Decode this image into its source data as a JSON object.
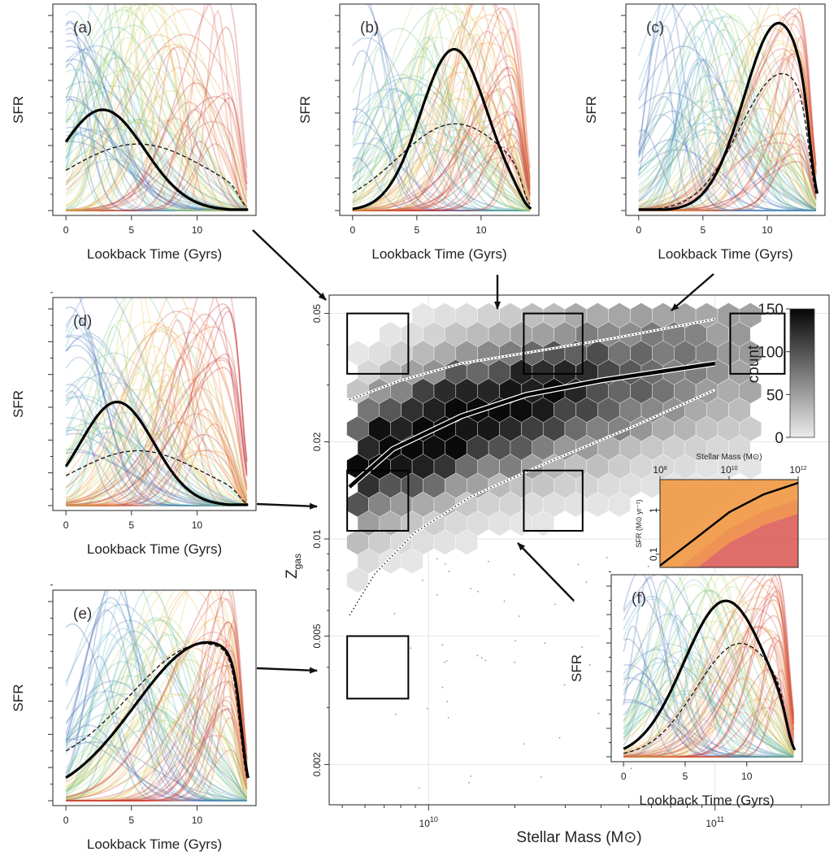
{
  "figure": {
    "width": 1031,
    "height": 1053
  },
  "chart_data": [
    {
      "id": "a",
      "type": "line",
      "label": "(a)",
      "xlabel": "Lookback Time (Gyrs)",
      "ylabel": "SFR",
      "xticks": [
        0,
        5,
        10
      ],
      "xlim": [
        -1,
        14.5
      ],
      "mean_curve": {
        "peak": 2.8,
        "width": 3.2,
        "amp": 0.5,
        "start": 0.3
      },
      "median_curve": {
        "peak": 5.5,
        "width": 5.5,
        "amp": 0.33
      },
      "bundle_seed": 11
    },
    {
      "id": "b",
      "type": "line",
      "label": "(b)",
      "xlabel": "Lookback Time (Gyrs)",
      "ylabel": "SFR",
      "xticks": [
        0,
        5,
        10
      ],
      "xlim": [
        -1,
        14.5
      ],
      "mean_curve": {
        "peak": 7.9,
        "width": 2.6,
        "amp": 0.8,
        "start": 0.02
      },
      "median_curve": {
        "peak": 8.0,
        "width": 4.5,
        "amp": 0.43
      },
      "bundle_seed": 23
    },
    {
      "id": "c",
      "type": "line",
      "label": "(c)",
      "xlabel": "Lookback Time (Gyrs)",
      "ylabel": "SFR",
      "xticks": [
        0,
        5,
        10
      ],
      "xlim": [
        -1,
        14.5
      ],
      "mean_curve": {
        "peak": 10.9,
        "width": 2.7,
        "amp": 0.93,
        "start": 0.0
      },
      "median_curve": {
        "peak": 11.2,
        "width": 3.3,
        "amp": 0.68
      },
      "bundle_seed": 37
    },
    {
      "id": "d",
      "type": "line",
      "label": "(d)",
      "xlabel": "Lookback Time (Gyrs)",
      "ylabel": "SFR",
      "xticks": [
        0,
        5,
        10
      ],
      "xlim": [
        -1,
        14.5
      ],
      "mean_curve": {
        "peak": 3.9,
        "width": 2.8,
        "amp": 0.51,
        "start": 0.39
      },
      "median_curve": {
        "peak": 5.5,
        "width": 5.0,
        "amp": 0.27
      },
      "bundle_seed": 41
    },
    {
      "id": "e",
      "type": "line",
      "label": "(e)",
      "xlabel": "Lookback Time (Gyrs)",
      "ylabel": "SFR",
      "xticks": [
        0,
        5,
        10
      ],
      "xlim": [
        -1,
        14.5
      ],
      "mean_curve": {
        "peak": 10.8,
        "width": 5.5,
        "amp": 0.77,
        "start": 0.33
      },
      "median_curve": {
        "peak": 10.9,
        "width": 6.0,
        "amp": 0.74
      },
      "bundle_seed": 53
    },
    {
      "id": "f",
      "type": "line",
      "label": "(f)",
      "xlabel": "Lookback Time (Gyrs)",
      "ylabel": "SFR",
      "xticks": [
        0,
        5,
        10
      ],
      "xlim": [
        -1,
        14.5
      ],
      "mean_curve": {
        "peak": 8.3,
        "width": 3.4,
        "amp": 0.88,
        "start": 0.33
      },
      "median_curve": {
        "peak": 9.5,
        "width": 3.6,
        "amp": 0.64
      },
      "bundle_seed": 67
    },
    {
      "id": "main",
      "type": "heatmap",
      "xlabel": "Stellar Mass (M⊙)",
      "ylabel": "Z",
      "ylabel_sub": "gas",
      "xscale": "log",
      "yscale": "log",
      "xlim": [
        4500000000.0,
        250000000000.0
      ],
      "ylim": [
        0.0015,
        0.057
      ],
      "xticks": [
        {
          "value": 10000000000.0,
          "base": "10",
          "exp": "10"
        },
        {
          "value": 100000000000.0,
          "base": "10",
          "exp": "11"
        }
      ],
      "yticks": [
        {
          "value": 0.002,
          "label": "0.002"
        },
        {
          "value": 0.005,
          "label": "0.005"
        },
        {
          "value": 0.01,
          "label": "0.01"
        },
        {
          "value": 0.02,
          "label": "0.02"
        },
        {
          "value": 0.05,
          "label": "0.05"
        }
      ],
      "colorbar": {
        "title": "count",
        "min": 0,
        "max": 150,
        "ticks": [
          0,
          50,
          100,
          150
        ]
      },
      "median_track": {
        "x": [
          5300000000.0,
          7500000000.0,
          13000000000.0,
          22000000000.0,
          40000000000.0,
          100000000000.0
        ],
        "y": [
          0.0145,
          0.019,
          0.024,
          0.028,
          0.031,
          0.035
        ]
      },
      "upper_track": {
        "x": [
          5300000000.0,
          8000000000.0,
          13000000000.0,
          23000000000.0,
          45000000000.0,
          100000000000.0
        ],
        "y": [
          0.027,
          0.031,
          0.035,
          0.038,
          0.042,
          0.048
        ]
      },
      "lower_track": {
        "x": [
          5300000000.0,
          6500000000.0,
          9000000000.0,
          14000000000.0,
          25000000000.0,
          50000000000.0,
          100000000000.0
        ],
        "y": [
          0.0058,
          0.0078,
          0.0105,
          0.0135,
          0.017,
          0.022,
          0.029
        ]
      },
      "selection_boxes": [
        {
          "panel": "a",
          "x": [
            5200000000.0,
            8500000000.0
          ],
          "y": [
            0.0325,
            0.05
          ]
        },
        {
          "panel": "b",
          "x": [
            21500000000.0,
            34500000000.0
          ],
          "y": [
            0.0325,
            0.05
          ]
        },
        {
          "panel": "c",
          "x": [
            113000000000.0,
            175000000000.0
          ],
          "y": [
            0.0325,
            0.05
          ]
        },
        {
          "panel": "d",
          "x": [
            5200000000.0,
            8500000000.0
          ],
          "y": [
            0.0106,
            0.0163
          ]
        },
        {
          "panel": "e",
          "x": [
            5200000000.0,
            8500000000.0
          ],
          "y": [
            0.0032,
            0.005
          ]
        },
        {
          "panel": "f",
          "x": [
            21500000000.0,
            34500000000.0
          ],
          "y": [
            0.0106,
            0.0163
          ]
        }
      ]
    },
    {
      "id": "inset",
      "type": "area",
      "xlabel": "Stellar Mass (M⊙)",
      "ylabel": "SFR (M⊙ yr⁻¹)",
      "xscale": "log",
      "yscale": "log",
      "xlim": [
        100000000.0,
        1000000000000.0
      ],
      "ylim": [
        0.05,
        5
      ],
      "xticks": [
        {
          "value": 100000000.0,
          "base": "10",
          "exp": "8"
        },
        {
          "value": 10000000000.0,
          "base": "10",
          "exp": "10"
        },
        {
          "value": 1000000000000.0,
          "base": "10",
          "exp": "12"
        }
      ],
      "yticks": [
        {
          "value": 0.1,
          "label": "0.1"
        },
        {
          "value": 1,
          "label": "1"
        }
      ],
      "sfms": {
        "x": [
          100000000.0,
          1000000000.0,
          10000000000.0,
          100000000000.0,
          1000000000000.0
        ],
        "y": [
          0.055,
          0.22,
          0.9,
          2.3,
          4.2
        ]
      },
      "bands": [
        "#9c6fb5",
        "#5fa6d4",
        "#79c7a3",
        "#c7dc7a",
        "#f3cf5c",
        "#f19a52",
        "#d9534f"
      ]
    }
  ],
  "palette": [
    "#3b5fb0",
    "#4f86c6",
    "#5bb3c0",
    "#6cc28a",
    "#b4d36a",
    "#e8c84e",
    "#f0913e",
    "#d64a3d",
    "#c0292e"
  ]
}
